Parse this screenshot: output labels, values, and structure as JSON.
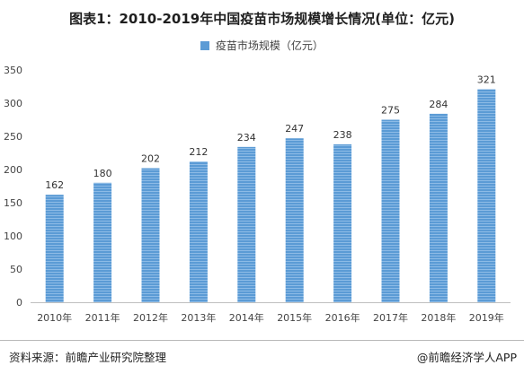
{
  "chart_data": {
    "type": "bar",
    "title": "图表1：2010-2019年中国疫苗市场规模增长情况(单位：亿元)",
    "series": [
      {
        "name": "疫苗市场规模（亿元）",
        "values": [
          162,
          180,
          202,
          212,
          234,
          247,
          238,
          275,
          284,
          321
        ]
      }
    ],
    "categories": [
      "2010年",
      "2011年",
      "2012年",
      "2013年",
      "2014年",
      "2015年",
      "2016年",
      "2017年",
      "2018年",
      "2019年"
    ],
    "ylim": [
      0,
      350
    ],
    "yticks": [
      0,
      50,
      100,
      150,
      200,
      250,
      300,
      350
    ],
    "grid": false,
    "legend": "top-center",
    "data_labels": true,
    "bar_color": "#5b9bd5"
  },
  "footer": {
    "source": "资料来源：前瞻产业研究院整理",
    "brand": "@前瞻经济学人APP"
  }
}
